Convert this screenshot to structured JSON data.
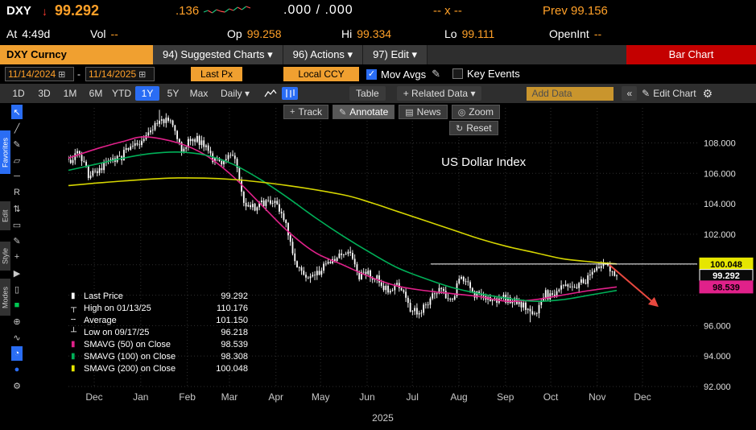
{
  "quote": {
    "ticker": "DXY",
    "direction_glyph": "↓",
    "price": "99.292",
    "change": ".136",
    "bid_ask": ".000 / .000",
    "size": "-- x --",
    "prev_label": "Prev",
    "prev": "99.156",
    "sparkline": [
      9,
      11,
      8,
      12,
      10,
      9,
      13,
      11,
      15,
      12,
      16,
      14
    ],
    "fields": [
      {
        "label": "At",
        "value": "4:49d",
        "color": "#ffffff"
      },
      {
        "label": "Vol",
        "value": "--",
        "color": "#ffa028"
      },
      {
        "label": "Op",
        "value": "99.258",
        "color": "#ffa028"
      },
      {
        "label": "Hi",
        "value": "99.334",
        "color": "#ffa028"
      },
      {
        "label": "Lo",
        "value": "99.111",
        "color": "#ffa028"
      },
      {
        "label": "OpenInt",
        "value": "--",
        "color": "#ffa028"
      }
    ]
  },
  "menu": {
    "security": "DXY Curncy",
    "items": [
      "94) Suggested Charts ▾",
      "96) Actions ▾",
      "97) Edit ▾"
    ],
    "chart_type": "Bar Chart"
  },
  "controls": {
    "date_from": "11/14/2024",
    "date_to": "11/14/2025",
    "range_separator": "-",
    "calendar_glyph": "⊞",
    "price_field": "Last Px",
    "currency": "Local CCY",
    "check_glyph": "✓",
    "mov_avgs_label": "Mov Avgs",
    "key_events_label": "Key Events",
    "pencil_glyph": "✎"
  },
  "toolbar": {
    "periods": [
      "1D",
      "3D",
      "1M",
      "6M",
      "YTD",
      "1Y",
      "5Y",
      "Max"
    ],
    "active_period": "1Y",
    "frequency": "Daily ▾",
    "table_label": "Table",
    "related_data": "+ Related Data ▾",
    "add_data_placeholder": "Add Data",
    "collapse": "«",
    "edit_chart": "Edit Chart",
    "pencil_glyph": "✎",
    "gear_glyph": "⚙"
  },
  "chart_buttons": {
    "buttons": [
      {
        "name": "track-button",
        "icon": "+",
        "icon_name": "crosshair-icon",
        "label": "Track",
        "active": false
      },
      {
        "name": "annotate-button",
        "icon": "✎",
        "icon_name": "pencil-icon",
        "label": "Annotate",
        "active": true
      },
      {
        "name": "news-button",
        "icon": "▤",
        "icon_name": "news-icon",
        "label": "News",
        "active": false
      },
      {
        "name": "zoom-button",
        "icon": "◎",
        "icon_name": "magnifier-icon",
        "label": "Zoom",
        "active": false
      }
    ],
    "reset": {
      "icon": "↻",
      "label": "Reset"
    }
  },
  "side_tools": {
    "sections": [
      "Favorites",
      "Edit",
      "Style",
      "Modes"
    ],
    "icons": [
      {
        "name": "pointer-tool",
        "glyph": "↖",
        "state": "active"
      },
      {
        "name": "trendline-tool",
        "glyph": "╱"
      },
      {
        "name": "pencil-tool",
        "glyph": "✎"
      },
      {
        "name": "eraser-tool",
        "glyph": "▱"
      },
      {
        "name": "horizontal-line-tool",
        "glyph": "─"
      },
      {
        "name": "regression-tool",
        "glyph": "R"
      },
      {
        "name": "arrows-tool",
        "glyph": "⇅"
      },
      {
        "name": "rectangle-tool",
        "glyph": "▭"
      },
      {
        "name": "annotation-pencil-tool",
        "glyph": "✎"
      },
      {
        "name": "crosshair-tool",
        "glyph": "+"
      },
      {
        "name": "play-tool",
        "glyph": "▶"
      },
      {
        "name": "note-tool",
        "glyph": "▯"
      },
      {
        "name": "buy-sell-marker-tool",
        "glyph": "■",
        "color": "#00c853"
      },
      {
        "name": "target-tool",
        "glyph": "⊕"
      },
      {
        "name": "wave-tool",
        "glyph": "∿"
      },
      {
        "name": "pie-tool",
        "glyph": "◔",
        "state": "active"
      },
      {
        "name": "dot-marker-tool",
        "glyph": "●",
        "color": "#2a6df4"
      },
      {
        "name": "chart-settings-gear",
        "glyph": "⚙"
      }
    ]
  },
  "chart_data": {
    "type": "bar",
    "title": "US Dollar Index",
    "title_pos": {
      "f": 0.593,
      "v": 106.5
    },
    "year": "2025",
    "ylim": [
      92.0,
      110.3
    ],
    "ygrid": [
      92,
      94,
      96,
      98,
      100,
      102,
      104,
      106,
      108
    ],
    "yticks": [
      108,
      106,
      104,
      102,
      96,
      94,
      92
    ],
    "data_span": 0.872,
    "months": [
      {
        "label": "Dec",
        "f": 0.041
      },
      {
        "label": "Jan",
        "f": 0.115
      },
      {
        "label": "Feb",
        "f": 0.189
      },
      {
        "label": "Mar",
        "f": 0.256
      },
      {
        "label": "Apr",
        "f": 0.33
      },
      {
        "label": "May",
        "f": 0.401
      },
      {
        "label": "Jun",
        "f": 0.475
      },
      {
        "label": "Jul",
        "f": 0.547
      },
      {
        "label": "Aug",
        "f": 0.621
      },
      {
        "label": "Sep",
        "f": 0.695
      },
      {
        "label": "Oct",
        "f": 0.767
      },
      {
        "label": "Nov",
        "f": 0.841
      },
      {
        "label": "Dec",
        "f": 0.913
      }
    ],
    "closes_weekly": [
      106.7,
      107.5,
      105.8,
      106.1,
      106.9,
      107.0,
      107.8,
      108.1,
      108.9,
      109.6,
      109.2,
      107.6,
      108.4,
      108.0,
      106.9,
      106.6,
      107.4,
      103.9,
      103.7,
      104.1,
      104.0,
      102.9,
      100.0,
      99.2,
      99.3,
      100.1,
      100.4,
      101.0,
      99.2,
      99.4,
      99.0,
      98.1,
      98.7,
      97.2,
      96.9,
      97.8,
      98.4,
      97.6,
      99.3,
      98.2,
      97.8,
      97.6,
      97.8,
      97.7,
      97.3,
      96.6,
      98.1,
      97.8,
      98.8,
      98.6,
      99.0,
      99.6,
      100.1,
      99.292
    ],
    "stats": {
      "last": 99.292,
      "high": 110.176,
      "high_date": "01/13/25",
      "avg": 101.15,
      "low": 96.218,
      "low_date": "09/17/25",
      "sma50": 98.539,
      "sma100": 98.308,
      "sma200": 100.048
    },
    "ma": [
      {
        "name": "SMAVG-50",
        "color": "#e0218a",
        "points": [
          [
            0,
            107.0
          ],
          [
            0.05,
            107.6
          ],
          [
            0.1,
            108.1
          ],
          [
            0.14,
            108.4
          ],
          [
            0.2,
            108.0
          ],
          [
            0.25,
            107.2
          ],
          [
            0.3,
            105.8
          ],
          [
            0.35,
            104.0
          ],
          [
            0.4,
            102.2
          ],
          [
            0.45,
            100.8
          ],
          [
            0.5,
            100.0
          ],
          [
            0.55,
            99.2
          ],
          [
            0.6,
            98.6
          ],
          [
            0.65,
            98.3
          ],
          [
            0.7,
            98.1
          ],
          [
            0.75,
            97.9
          ],
          [
            0.8,
            97.6
          ],
          [
            0.85,
            97.7
          ],
          [
            0.9,
            98.0
          ],
          [
            0.95,
            98.3
          ],
          [
            1,
            98.54
          ]
        ]
      },
      {
        "name": "SMAVG-100",
        "color": "#00b058",
        "points": [
          [
            0,
            106.2
          ],
          [
            0.05,
            106.6
          ],
          [
            0.1,
            107.0
          ],
          [
            0.15,
            107.3
          ],
          [
            0.2,
            107.4
          ],
          [
            0.25,
            107.2
          ],
          [
            0.3,
            106.6
          ],
          [
            0.35,
            105.6
          ],
          [
            0.4,
            104.4
          ],
          [
            0.45,
            103.1
          ],
          [
            0.5,
            101.9
          ],
          [
            0.55,
            100.8
          ],
          [
            0.6,
            99.8
          ],
          [
            0.65,
            99.1
          ],
          [
            0.7,
            98.5
          ],
          [
            0.75,
            98.1
          ],
          [
            0.8,
            97.8
          ],
          [
            0.85,
            97.6
          ],
          [
            0.9,
            97.7
          ],
          [
            0.95,
            98.0
          ],
          [
            1,
            98.31
          ]
        ]
      },
      {
        "name": "SMAVG-200",
        "color": "#d6d600",
        "points": [
          [
            0,
            105.2
          ],
          [
            0.1,
            105.5
          ],
          [
            0.2,
            105.7
          ],
          [
            0.3,
            105.6
          ],
          [
            0.4,
            105.2
          ],
          [
            0.5,
            104.6
          ],
          [
            0.55,
            104.1
          ],
          [
            0.6,
            103.5
          ],
          [
            0.65,
            102.9
          ],
          [
            0.7,
            102.3
          ],
          [
            0.75,
            101.7
          ],
          [
            0.8,
            101.2
          ],
          [
            0.85,
            100.8
          ],
          [
            0.9,
            100.4
          ],
          [
            0.95,
            100.2
          ],
          [
            1,
            100.05
          ]
        ]
      }
    ],
    "annotations": {
      "hline": {
        "v": 100.048,
        "f1": 0.576,
        "f2": 1.0,
        "color": "#ffffff"
      },
      "arrow": {
        "f1": 0.86,
        "v1": 100.0,
        "f2": 0.935,
        "v2": 97.35,
        "color": "#e8483f"
      }
    },
    "price_markers": [
      {
        "value": "100.048",
        "v": 100.048,
        "bg": "#e6e600",
        "fg": "#000000",
        "border": "#e6e600"
      },
      {
        "value": "99.292",
        "v": 99.292,
        "bg": "#0a0a0a",
        "fg": "#ffffff",
        "border": "#ffffff"
      },
      {
        "value": "98.539",
        "v": 98.539,
        "bg": "#e0218a",
        "fg": "#000000",
        "border": "#e0218a"
      }
    ],
    "legend": [
      {
        "marker": "▮",
        "color": "#ffffff",
        "label": "Last Price",
        "value": "99.292"
      },
      {
        "marker": "┬",
        "color": "#ffffff",
        "label": "High on 01/13/25",
        "value": "110.176"
      },
      {
        "marker": "╌",
        "color": "#ffffff",
        "label": "Average",
        "value": "101.150"
      },
      {
        "marker": "┴",
        "color": "#ffffff",
        "label": "Low on 09/17/25",
        "value": "96.218"
      },
      {
        "marker": "▮",
        "color": "#e0218a",
        "label": "SMAVG (50) on Close",
        "value": "98.539"
      },
      {
        "marker": "▮",
        "color": "#00b058",
        "label": "SMAVG (100) on Close",
        "value": "98.308"
      },
      {
        "marker": "▮",
        "color": "#e6e600",
        "label": "SMAVG (200) on Close",
        "value": "100.048"
      }
    ]
  }
}
